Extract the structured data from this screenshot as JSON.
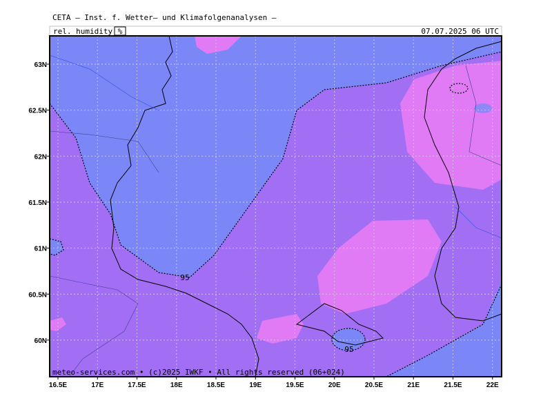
{
  "header": {
    "title": "CETA — Inst. f. Wetter— und Klimafolgenanalysen —",
    "parameter": "rel. humidity",
    "unit": "%",
    "valid_time": "07.07.2025 06 UTC"
  },
  "map": {
    "lat_ticks": [
      {
        "value": 63,
        "label": "63N"
      },
      {
        "value": 62.5,
        "label": "62.5N"
      },
      {
        "value": 62,
        "label": "62N"
      },
      {
        "value": 61.5,
        "label": "61.5N"
      },
      {
        "value": 61,
        "label": "61N"
      },
      {
        "value": 60.5,
        "label": "60.5N"
      },
      {
        "value": 60,
        "label": "60N"
      }
    ],
    "lon_ticks": [
      {
        "value": 16.5,
        "label": "16.5E"
      },
      {
        "value": 17,
        "label": "17E"
      },
      {
        "value": 17.5,
        "label": "17.5E"
      },
      {
        "value": 18,
        "label": "18E"
      },
      {
        "value": 18.5,
        "label": "18.5E"
      },
      {
        "value": 19,
        "label": "19E"
      },
      {
        "value": 19.5,
        "label": "19.5E"
      },
      {
        "value": 20,
        "label": "20E"
      },
      {
        "value": 20.5,
        "label": "20.5E"
      },
      {
        "value": 21,
        "label": "21E"
      },
      {
        "value": 21.5,
        "label": "21.5E"
      },
      {
        "value": 22,
        "label": "22E"
      }
    ],
    "contour_labels": [
      "95",
      "95"
    ],
    "footer": "meteo-services.com • (c)2025 IWKF • All rights reserved (06+024)"
  }
}
